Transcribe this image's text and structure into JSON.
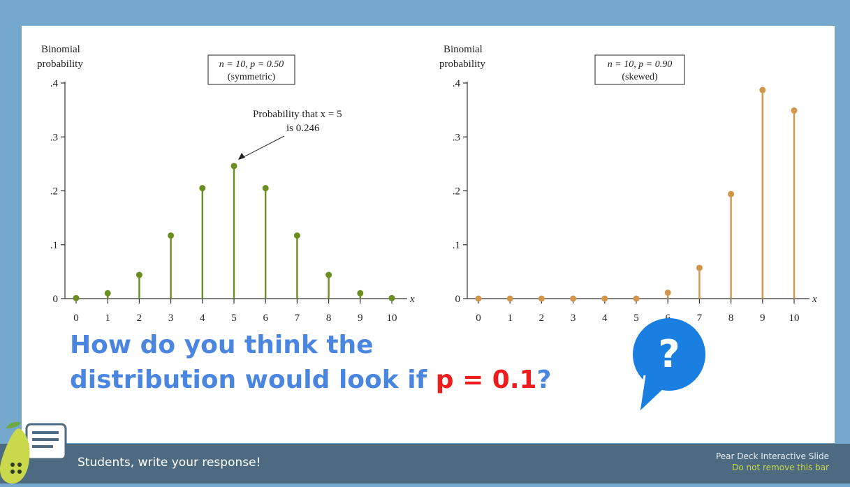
{
  "chart_data": [
    {
      "type": "bar",
      "ylabel": "Binomial probability",
      "xlabel": "x",
      "annotation_box": [
        "n = 10, p = 0.50",
        "(symmetric)"
      ],
      "callout": [
        "Probability that x = 5",
        "is 0.246"
      ],
      "categories": [
        "0",
        "1",
        "2",
        "3",
        "4",
        "5",
        "6",
        "7",
        "8",
        "9",
        "10"
      ],
      "values": [
        0.001,
        0.01,
        0.044,
        0.117,
        0.205,
        0.246,
        0.205,
        0.117,
        0.044,
        0.01,
        0.001
      ],
      "ytick_labels": [
        "0",
        ".1",
        ".2",
        ".3",
        ".4"
      ],
      "ylim": [
        0,
        0.4
      ],
      "color": "#6b8e23"
    },
    {
      "type": "bar",
      "ylabel": "Binomial probability",
      "xlabel": "x",
      "annotation_box": [
        "n = 10, p = 0.90",
        "(skewed)"
      ],
      "categories": [
        "0",
        "1",
        "2",
        "3",
        "4",
        "5",
        "6",
        "7",
        "8",
        "9",
        "10"
      ],
      "values": [
        0.0,
        0.0,
        0.0,
        0.0,
        0.0,
        0.0,
        0.011,
        0.057,
        0.194,
        0.387,
        0.349
      ],
      "ytick_labels": [
        "0",
        ".1",
        ".2",
        ".3",
        ".4"
      ],
      "ylim": [
        0,
        0.4
      ],
      "color": "#d2954c"
    }
  ],
  "question": {
    "line1": "How do you think the",
    "line2_pre": "distribution would look if ",
    "line2_highlight": "p = 0.1",
    "line2_post": "?"
  },
  "bubble": {
    "glyph": "?",
    "color": "#1a7fe0"
  },
  "footer": {
    "cta": "Students, write your response!",
    "brand_line1": "Pear Deck Interactive Slide",
    "brand_line2": "Do not remove this bar"
  }
}
